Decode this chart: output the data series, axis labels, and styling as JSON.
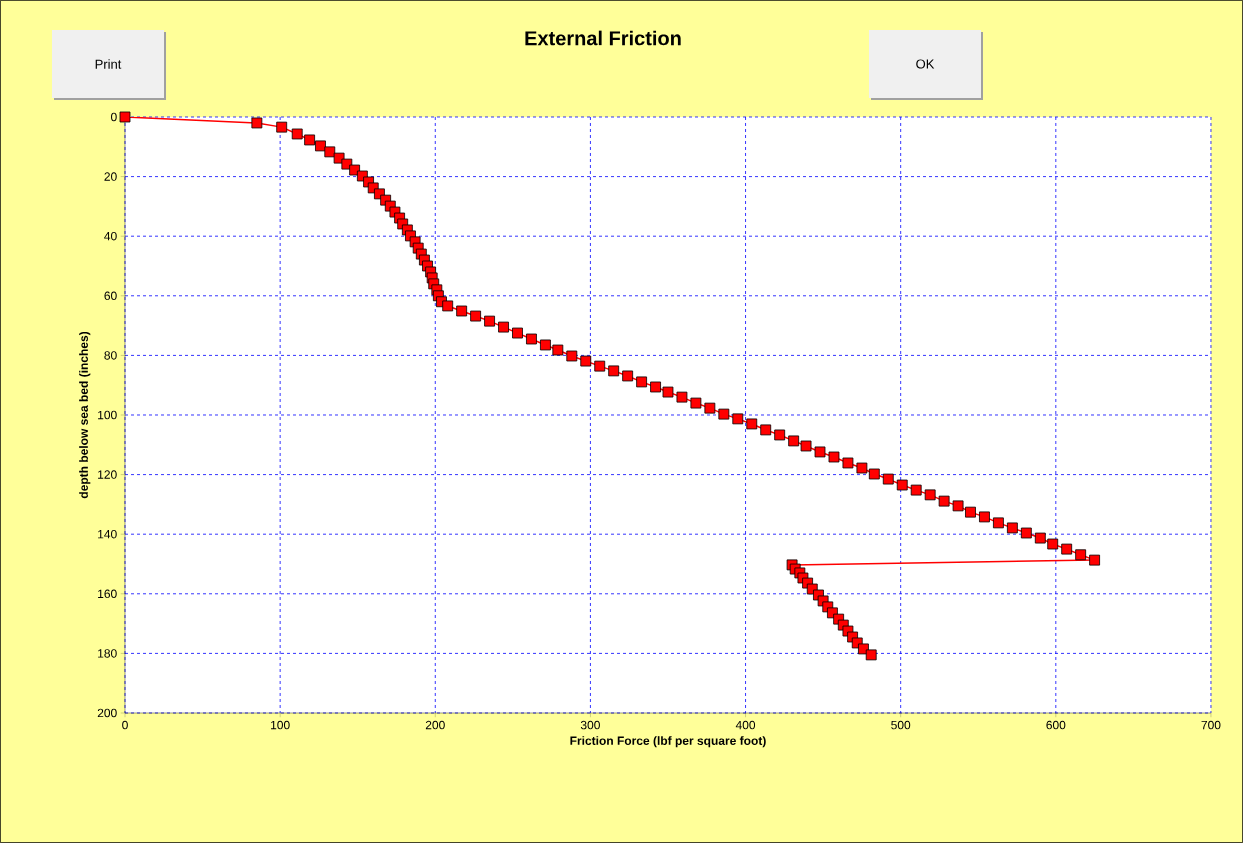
{
  "chart_data": {
    "type": "line",
    "title": "External Friction",
    "xlabel": "Friction Force (lbf per square foot)",
    "ylabel": "depth below sea bed (inches)",
    "annotations": [
      "Print",
      "OK"
    ],
    "x": [
      0,
      85,
      101,
      111,
      119,
      126,
      132,
      138,
      143,
      148,
      153,
      157,
      160,
      164,
      168,
      171,
      174,
      177,
      179,
      182,
      184,
      187,
      189,
      191,
      193,
      195,
      197,
      198,
      199,
      201,
      202,
      204,
      208,
      217,
      226,
      235,
      244,
      253,
      262,
      271,
      279,
      288,
      297,
      306,
      315,
      324,
      333,
      342,
      350,
      359,
      368,
      377,
      386,
      395,
      404,
      413,
      422,
      431,
      439,
      448,
      457,
      466,
      475,
      483,
      492,
      501,
      510,
      519,
      528,
      537,
      545,
      554,
      563,
      572,
      581,
      590,
      598,
      607,
      616,
      625,
      430,
      432,
      435,
      437,
      440,
      443,
      447,
      450,
      453,
      456,
      460,
      463,
      466,
      469,
      472,
      476,
      481
    ],
    "series": [
      {
        "color": "#ff0000",
        "values": [
          0,
          2,
          3.4,
          5.7,
          7.7,
          9.7,
          11.7,
          13.8,
          15.8,
          17.8,
          19.8,
          21.8,
          23.8,
          25.8,
          27.9,
          29.9,
          31.9,
          33.9,
          35.9,
          37.9,
          39.9,
          41.9,
          44,
          46,
          48,
          50,
          52,
          54,
          56,
          58,
          60,
          62,
          63.4,
          65.1,
          66.8,
          68.5,
          70.5,
          72.5,
          74.5,
          76.5,
          78.2,
          80.2,
          81.9,
          83.6,
          85.2,
          86.9,
          88.9,
          90.6,
          92.3,
          94,
          96,
          97.7,
          99.7,
          101.3,
          103,
          105,
          106.7,
          108.7,
          110.4,
          112.4,
          114.1,
          116.1,
          117.8,
          119.8,
          121.5,
          123.5,
          125.2,
          126.8,
          128.9,
          130.5,
          132.6,
          134.2,
          136.2,
          137.9,
          139.6,
          141.3,
          143.3,
          145,
          146.9,
          148.7,
          150.3,
          151.7,
          153,
          154.7,
          156.4,
          158.4,
          160.4,
          162.4,
          164.4,
          166.4,
          168.5,
          170.5,
          172.5,
          174.5,
          176.5,
          178.5,
          180.5
        ]
      }
    ],
    "xlim": [
      0,
      700
    ],
    "ylim": [
      200,
      0
    ],
    "xticks": [
      0,
      100,
      200,
      300,
      400,
      500,
      600,
      700
    ],
    "yticks": [
      0,
      20,
      40,
      60,
      80,
      100,
      120,
      140,
      160,
      180,
      200
    ],
    "grid": true,
    "marker": "square",
    "line_style": "solid"
  }
}
